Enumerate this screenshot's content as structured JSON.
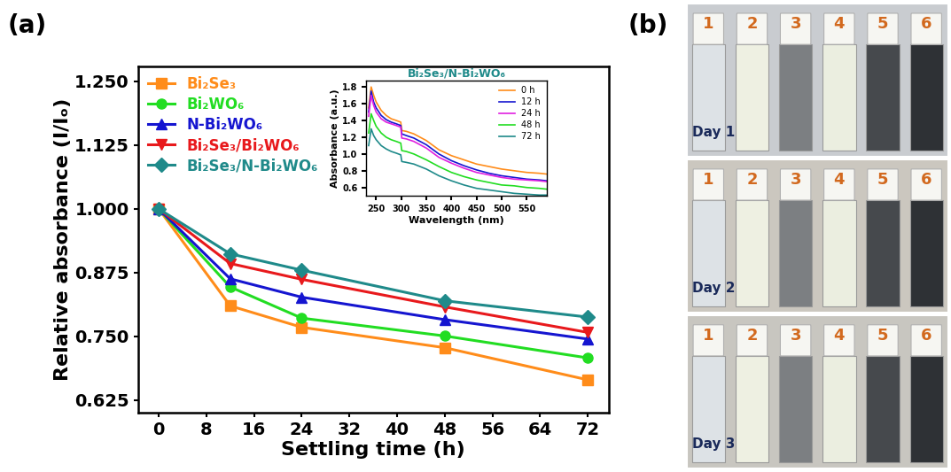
{
  "panel_labels": [
    "(a)",
    "(b)"
  ],
  "chart_data": [
    {
      "type": "line",
      "xlabel": "Settling time (h)",
      "ylabel": "Relative absorbance (I/Iₒ)",
      "x": [
        0,
        12,
        24,
        48,
        72
      ],
      "series": [
        {
          "name": "Bi₂Se₃",
          "color": "#ff8c1a",
          "marker": "square",
          "line_style": "solid",
          "values": [
            1.0,
            0.81,
            0.768,
            0.728,
            0.665
          ]
        },
        {
          "name": "Bi₂WO₆",
          "color": "#22dd22",
          "marker": "circle",
          "line_style": "solid",
          "values": [
            1.0,
            0.847,
            0.786,
            0.751,
            0.708
          ]
        },
        {
          "name": "N-Bi₂WO₆",
          "color": "#1515d0",
          "marker": "triangle_up",
          "line_style": "solid",
          "values": [
            1.0,
            0.863,
            0.827,
            0.783,
            0.745
          ]
        },
        {
          "name": "Bi₂Se₃/Bi₂WO₆",
          "color": "#e8191c",
          "marker": "triangle_down",
          "line_style": "solid",
          "values": [
            1.0,
            0.893,
            0.862,
            0.808,
            0.758
          ]
        },
        {
          "name": "Bi₂Se₃/N-Bi₂WO₆",
          "color": "#1f8a8a",
          "marker": "diamond",
          "line_style": "solid",
          "values": [
            1.0,
            0.912,
            0.88,
            0.82,
            0.788
          ]
        }
      ],
      "xlim": [
        -3.5,
        75.5
      ],
      "ylim": [
        0.6,
        1.28
      ],
      "xticks": [
        0,
        8,
        16,
        24,
        32,
        40,
        48,
        56,
        64,
        72
      ],
      "yticks": [
        0.625,
        {
          "value": 0.75,
          "label": "0.750"
        },
        0.875,
        {
          "value": 1.0,
          "label": "1.000"
        },
        1.125,
        {
          "value": 1.25,
          "label": "1.250"
        }
      ],
      "legend": "upper left"
    },
    {
      "type": "line",
      "title": "Bi₂Se₃/N-Bi₂WO₆",
      "xlabel": "Wavelength (nm)",
      "ylabel": "Absorbance (a.u.)",
      "x": [
        235,
        240,
        245,
        250,
        260,
        270,
        280,
        290,
        299,
        301,
        310,
        325,
        350,
        375,
        400,
        425,
        450,
        475,
        500,
        525,
        550,
        575,
        590
      ],
      "series": [
        {
          "name": "0 h",
          "color": "#ff8c1a",
          "line_style": "solid",
          "values": [
            1.55,
            1.8,
            1.7,
            1.62,
            1.52,
            1.46,
            1.42,
            1.4,
            1.38,
            1.28,
            1.27,
            1.24,
            1.16,
            1.05,
            0.98,
            0.93,
            0.88,
            0.85,
            0.82,
            0.8,
            0.78,
            0.77,
            0.76
          ]
        },
        {
          "name": "12 h",
          "color": "#1515d0",
          "line_style": "solid",
          "values": [
            1.5,
            1.75,
            1.62,
            1.55,
            1.46,
            1.41,
            1.38,
            1.36,
            1.34,
            1.24,
            1.22,
            1.19,
            1.11,
            1.0,
            0.92,
            0.86,
            0.81,
            0.77,
            0.74,
            0.72,
            0.7,
            0.69,
            0.68
          ]
        },
        {
          "name": "24 h",
          "color": "#e020e0",
          "line_style": "solid",
          "values": [
            1.45,
            1.7,
            1.58,
            1.5,
            1.42,
            1.38,
            1.36,
            1.34,
            1.32,
            1.19,
            1.18,
            1.15,
            1.07,
            0.96,
            0.89,
            0.83,
            0.78,
            0.75,
            0.72,
            0.7,
            0.69,
            0.68,
            0.67
          ]
        },
        {
          "name": "48 h",
          "color": "#22dd22",
          "line_style": "solid",
          "values": [
            1.25,
            1.48,
            1.4,
            1.33,
            1.25,
            1.2,
            1.17,
            1.15,
            1.13,
            1.04,
            1.03,
            1.0,
            0.93,
            0.85,
            0.78,
            0.73,
            0.69,
            0.66,
            0.63,
            0.62,
            0.6,
            0.59,
            0.58
          ]
        },
        {
          "name": "72 h",
          "color": "#1f8a8a",
          "line_style": "solid",
          "values": [
            1.1,
            1.3,
            1.22,
            1.17,
            1.1,
            1.06,
            1.03,
            1.01,
            0.99,
            0.91,
            0.9,
            0.88,
            0.82,
            0.74,
            0.68,
            0.63,
            0.59,
            0.57,
            0.55,
            0.53,
            0.52,
            0.51,
            0.51
          ]
        }
      ],
      "xlim": [
        230,
        590
      ],
      "ylim": [
        0.5,
        1.88
      ],
      "xticks": [
        250,
        300,
        350,
        400,
        450,
        500,
        550
      ],
      "yticks": [
        0.6,
        0.8,
        1.0,
        1.2,
        1.4,
        1.6,
        1.8
      ],
      "legend": "upper right"
    }
  ],
  "photo": {
    "vial_labels": [
      "1",
      "2",
      "3",
      "4",
      "5",
      "6"
    ],
    "days": [
      "Day 1",
      "Day 2",
      "Day 3"
    ]
  }
}
